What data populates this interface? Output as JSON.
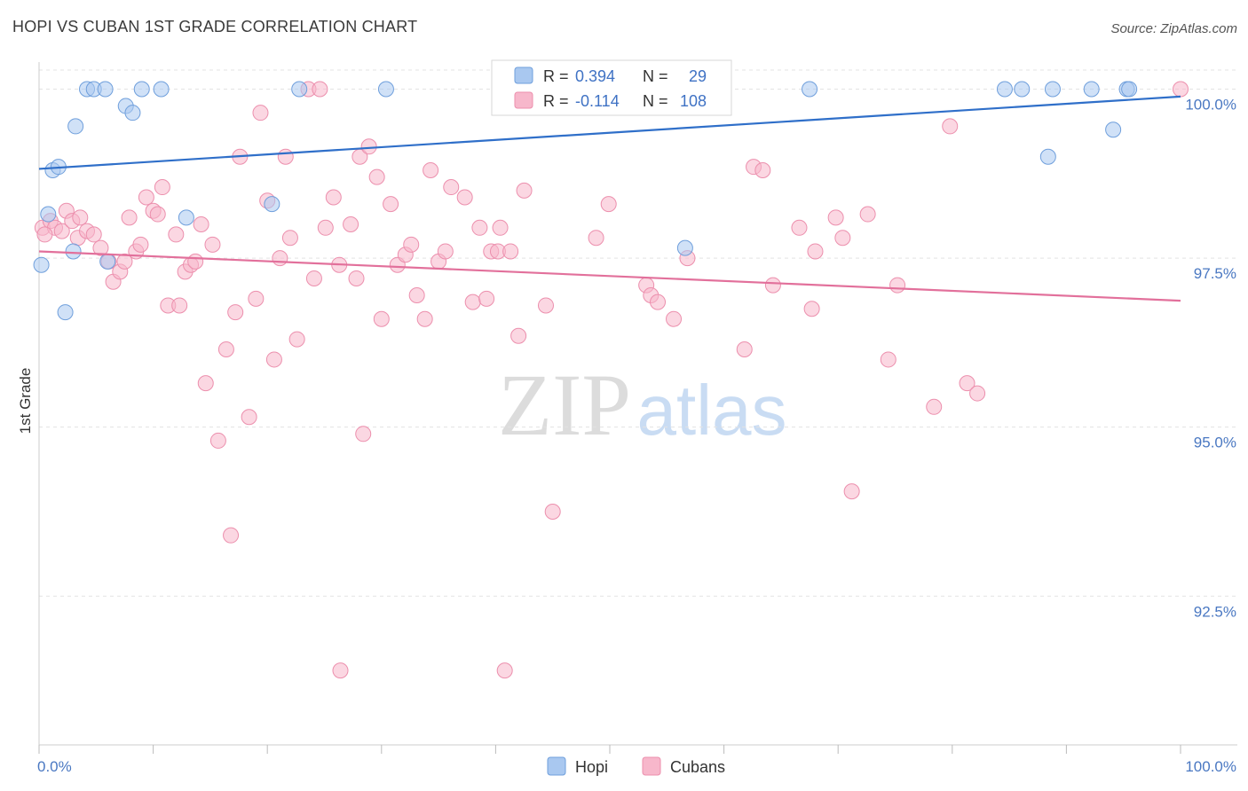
{
  "title": "HOPI VS CUBAN 1ST GRADE CORRELATION CHART",
  "source": "Source: ZipAtlas.com",
  "watermark": {
    "zip": "ZIP",
    "atlas": "atlas"
  },
  "colors": {
    "hopi_fill": "#a9c8f0",
    "hopi_stroke": "#6f9fdc",
    "hopi_line": "#2f6fc9",
    "cubans_fill": "#f7b7cb",
    "cubans_stroke": "#ec8fad",
    "cubans_line": "#e2709b",
    "tick_label": "#4a78c2",
    "grid": "#e3e3e3"
  },
  "legend_top": {
    "rows": [
      {
        "r_label": "R =",
        "r_value": "0.394",
        "n_label": "N =",
        "n_value": "29"
      },
      {
        "r_label": "R =",
        "r_value": "-0.114",
        "n_label": "N =",
        "n_value": "108"
      }
    ]
  },
  "legend_bottom": {
    "items": [
      "Hopi",
      "Cubans"
    ]
  },
  "chart_data": {
    "type": "scatter",
    "xlabel": "",
    "ylabel": "1st Grade",
    "xlim": [
      0,
      100
    ],
    "ylim": [
      90.3,
      100.4
    ],
    "x_tick_labels": [
      {
        "value": 0,
        "label": "0.0%"
      },
      {
        "value": 100,
        "label": "100.0%"
      }
    ],
    "x_minor_ticks": [
      0,
      10,
      20,
      30,
      40,
      50,
      60,
      70,
      80,
      90,
      100
    ],
    "y_ticks": [
      {
        "value": 100,
        "label": "100.0%"
      },
      {
        "value": 97.5,
        "label": "97.5%"
      },
      {
        "value": 95,
        "label": "95.0%"
      },
      {
        "value": 92.5,
        "label": "92.5%"
      }
    ],
    "grid": true,
    "legend_placement": "top-center",
    "series": [
      {
        "name": "Hopi",
        "trend": {
          "x": [
            0,
            100
          ],
          "y": [
            98.82,
            99.89
          ]
        },
        "points": [
          [
            0.2,
            97.4
          ],
          [
            0.8,
            98.15
          ],
          [
            1.2,
            98.8
          ],
          [
            1.7,
            98.85
          ],
          [
            2.3,
            96.7
          ],
          [
            3.0,
            97.6
          ],
          [
            3.2,
            99.45
          ],
          [
            4.2,
            100
          ],
          [
            4.8,
            100
          ],
          [
            5.8,
            100
          ],
          [
            6.0,
            97.45
          ],
          [
            7.6,
            99.75
          ],
          [
            8.2,
            99.65
          ],
          [
            9.0,
            100
          ],
          [
            10.7,
            100
          ],
          [
            12.9,
            98.1
          ],
          [
            20.4,
            98.3
          ],
          [
            22.8,
            100
          ],
          [
            30.4,
            100
          ],
          [
            56.6,
            97.65
          ],
          [
            67.5,
            100
          ],
          [
            84.6,
            100
          ],
          [
            86.1,
            100
          ],
          [
            88.4,
            99.0
          ],
          [
            88.8,
            100
          ],
          [
            92.2,
            100
          ],
          [
            94.1,
            99.4
          ],
          [
            95.3,
            100
          ],
          [
            95.5,
            100
          ]
        ]
      },
      {
        "name": "Cubans",
        "trend": {
          "x": [
            0,
            100
          ],
          "y": [
            97.6,
            96.87
          ]
        },
        "points": [
          [
            0.3,
            97.95
          ],
          [
            1.0,
            98.05
          ],
          [
            1.4,
            97.95
          ],
          [
            2.0,
            97.9
          ],
          [
            2.4,
            98.2
          ],
          [
            2.9,
            98.05
          ],
          [
            3.4,
            97.8
          ],
          [
            3.6,
            98.1
          ],
          [
            4.2,
            97.9
          ],
          [
            4.8,
            97.85
          ],
          [
            5.4,
            97.65
          ],
          [
            6.1,
            97.45
          ],
          [
            6.5,
            97.15
          ],
          [
            7.1,
            97.3
          ],
          [
            7.5,
            97.45
          ],
          [
            7.9,
            98.1
          ],
          [
            8.5,
            97.6
          ],
          [
            8.9,
            97.7
          ],
          [
            9.4,
            98.4
          ],
          [
            10.0,
            98.2
          ],
          [
            10.4,
            98.15
          ],
          [
            10.8,
            98.55
          ],
          [
            11.3,
            96.8
          ],
          [
            12.0,
            97.85
          ],
          [
            12.3,
            96.8
          ],
          [
            12.8,
            97.3
          ],
          [
            13.3,
            97.4
          ],
          [
            13.7,
            97.45
          ],
          [
            14.2,
            98.0
          ],
          [
            14.6,
            95.65
          ],
          [
            15.2,
            97.7
          ],
          [
            15.7,
            94.8
          ],
          [
            16.4,
            96.15
          ],
          [
            16.8,
            93.4
          ],
          [
            17.2,
            96.7
          ],
          [
            17.6,
            99.0
          ],
          [
            18.4,
            95.15
          ],
          [
            19.0,
            96.9
          ],
          [
            19.4,
            99.65
          ],
          [
            20.0,
            98.35
          ],
          [
            20.6,
            96.0
          ],
          [
            21.1,
            97.5
          ],
          [
            21.6,
            99.0
          ],
          [
            22.0,
            97.8
          ],
          [
            22.6,
            96.3
          ],
          [
            23.6,
            100
          ],
          [
            24.1,
            97.2
          ],
          [
            24.6,
            100
          ],
          [
            25.1,
            97.95
          ],
          [
            25.8,
            98.4
          ],
          [
            26.3,
            97.4
          ],
          [
            26.4,
            91.4
          ],
          [
            27.3,
            98.0
          ],
          [
            27.8,
            97.2
          ],
          [
            28.1,
            99.0
          ],
          [
            28.4,
            94.9
          ],
          [
            28.9,
            99.15
          ],
          [
            29.6,
            98.7
          ],
          [
            30.0,
            96.6
          ],
          [
            30.8,
            98.3
          ],
          [
            31.4,
            97.4
          ],
          [
            32.1,
            97.55
          ],
          [
            32.6,
            97.7
          ],
          [
            33.1,
            96.95
          ],
          [
            33.8,
            96.6
          ],
          [
            34.3,
            98.8
          ],
          [
            35.0,
            97.45
          ],
          [
            35.6,
            97.6
          ],
          [
            36.1,
            98.55
          ],
          [
            37.3,
            98.4
          ],
          [
            38.0,
            96.85
          ],
          [
            38.6,
            97.95
          ],
          [
            39.2,
            96.9
          ],
          [
            39.6,
            97.6
          ],
          [
            40.2,
            97.6
          ],
          [
            40.4,
            97.95
          ],
          [
            40.8,
            91.4
          ],
          [
            41.3,
            97.6
          ],
          [
            42.0,
            96.35
          ],
          [
            42.5,
            98.5
          ],
          [
            45.0,
            93.75
          ],
          [
            44.4,
            96.8
          ],
          [
            48.8,
            97.8
          ],
          [
            49.9,
            98.3
          ],
          [
            53.2,
            97.1
          ],
          [
            53.6,
            96.95
          ],
          [
            54.2,
            96.85
          ],
          [
            55.6,
            96.6
          ],
          [
            56.8,
            97.5
          ],
          [
            61.8,
            96.15
          ],
          [
            62.6,
            98.85
          ],
          [
            63.4,
            98.8
          ],
          [
            64.3,
            97.1
          ],
          [
            66.6,
            97.95
          ],
          [
            67.7,
            96.75
          ],
          [
            68.0,
            97.6
          ],
          [
            69.8,
            98.1
          ],
          [
            70.4,
            97.8
          ],
          [
            71.2,
            94.05
          ],
          [
            72.6,
            98.15
          ],
          [
            74.4,
            96.0
          ],
          [
            75.2,
            97.1
          ],
          [
            78.4,
            95.3
          ],
          [
            79.8,
            99.45
          ],
          [
            81.3,
            95.65
          ],
          [
            82.2,
            95.5
          ],
          [
            100.0,
            100
          ],
          [
            0.5,
            97.85
          ]
        ]
      }
    ]
  }
}
